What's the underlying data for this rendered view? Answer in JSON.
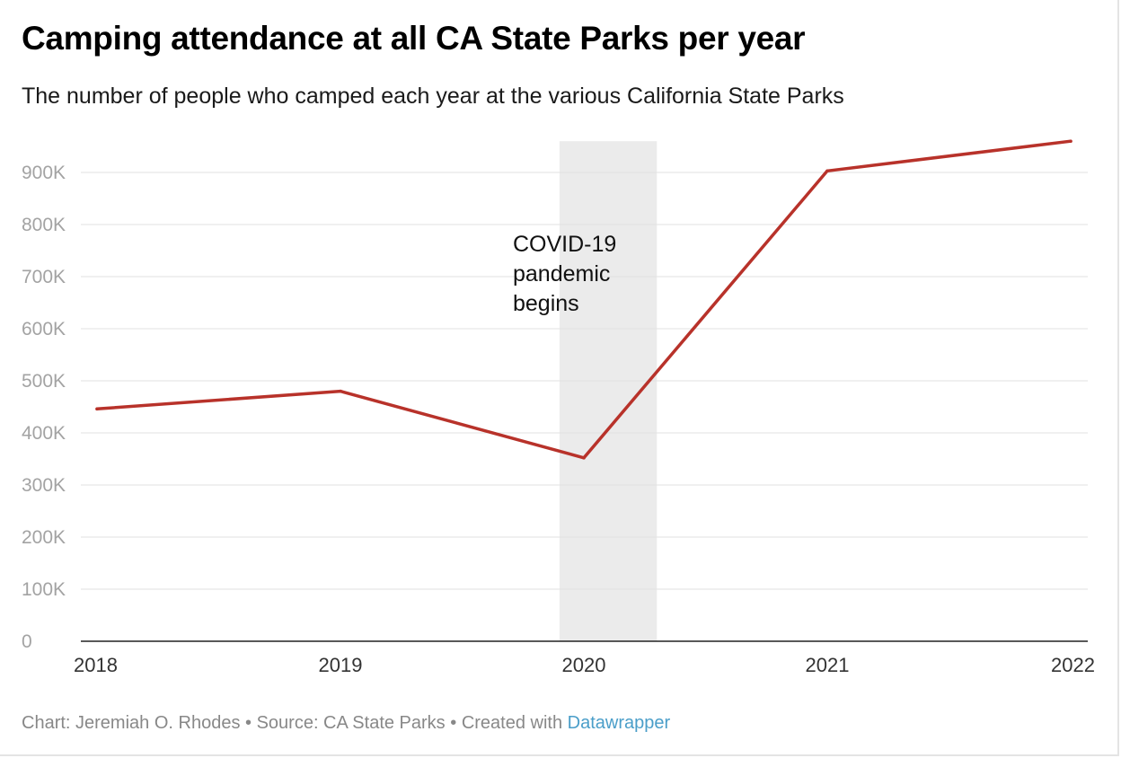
{
  "title": "Camping attendance at all CA State Parks per year",
  "subtitle": "The number of people who camped each year at the various California State Parks",
  "footer": {
    "chart_credit": "Chart: Jeremiah O. Rhodes",
    "separator": "•",
    "source": "Source: CA State Parks",
    "created_with": "Created with",
    "tool_link": "Datawrapper"
  },
  "colors": {
    "line": "#b8322a",
    "grid": "#e2e2e2",
    "band": "#ebebeb",
    "link": "#4a9ec9"
  },
  "chart_data": {
    "type": "line",
    "title": "Camping attendance at all CA State Parks per year",
    "subtitle": "The number of people who camped each year at the various California State Parks",
    "xlabel": "",
    "ylabel": "",
    "x": [
      2018,
      2019,
      2020,
      2021,
      2022
    ],
    "series": [
      {
        "values": [
          446000,
          480000,
          352000,
          903000,
          960000
        ]
      }
    ],
    "xlim": [
      2018,
      2022
    ],
    "ylim": [
      0,
      960000
    ],
    "y_ticks": [
      0,
      100000,
      200000,
      300000,
      400000,
      500000,
      600000,
      700000,
      800000,
      900000
    ],
    "y_tick_labels": [
      "0",
      "100K",
      "200K",
      "300K",
      "400K",
      "500K",
      "600K",
      "700K",
      "800K",
      "900K"
    ],
    "x_tick_labels": [
      "2018",
      "2019",
      "2020",
      "2021",
      "2022"
    ],
    "grid": true,
    "legend": "none",
    "highlight_range": {
      "x_start": 2019.9,
      "x_end": 2020.3,
      "label_lines": [
        "COVID-19",
        "pandemic",
        "begins"
      ]
    }
  }
}
